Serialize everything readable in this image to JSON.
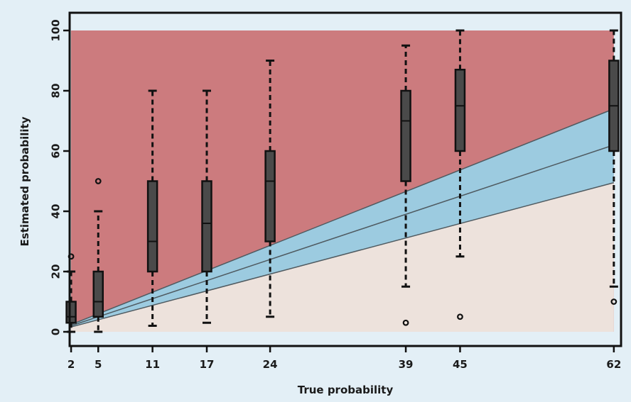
{
  "chart_data": {
    "type": "boxplot",
    "xlabel": "True probability",
    "ylabel": "Estimated probability",
    "x_ticks": [
      2,
      5,
      11,
      17,
      24,
      39,
      45,
      62
    ],
    "y_ticks": [
      0,
      20,
      40,
      60,
      80,
      100
    ],
    "xlim": [
      0,
      66
    ],
    "ylim": [
      0,
      100
    ],
    "regions": {
      "overestimate_color": "#cc7b7e",
      "underestimate_color": "#ede2dc",
      "band_color": "#9ccbe0",
      "band_edge_color": "#4f5a60",
      "diagonal": {
        "x0": 2,
        "y0": 2,
        "x1": 62,
        "y1": 62
      },
      "band_upper": {
        "x0": 2,
        "y0": 2.4,
        "x1": 62,
        "y1": 74
      },
      "band_lower": {
        "x0": 2,
        "y0": 1.6,
        "x1": 62,
        "y1": 49.5
      }
    },
    "box_color": "#4a4a4a",
    "boxes": [
      {
        "x": 2,
        "whisker_low": 0,
        "q1": 3,
        "median": 5,
        "q3": 10,
        "whisker_high": 20,
        "outliers": [
          25
        ]
      },
      {
        "x": 5,
        "whisker_low": 0,
        "q1": 5,
        "median": 10,
        "q3": 20,
        "whisker_high": 40,
        "outliers": [
          50
        ]
      },
      {
        "x": 11,
        "whisker_low": 2,
        "q1": 20,
        "median": 30,
        "q3": 50,
        "whisker_high": 80,
        "outliers": []
      },
      {
        "x": 17,
        "whisker_low": 3,
        "q1": 20,
        "median": 36,
        "q3": 50,
        "whisker_high": 80,
        "outliers": []
      },
      {
        "x": 24,
        "whisker_low": 5,
        "q1": 30,
        "median": 50,
        "q3": 60,
        "whisker_high": 90,
        "outliers": []
      },
      {
        "x": 39,
        "whisker_low": 15,
        "q1": 50,
        "median": 70,
        "q3": 80,
        "whisker_high": 95,
        "outliers": [
          3
        ]
      },
      {
        "x": 45,
        "whisker_low": 25,
        "q1": 60,
        "median": 75,
        "q3": 87,
        "whisker_high": 100,
        "outliers": [
          5
        ]
      },
      {
        "x": 62,
        "whisker_low": 15,
        "q1": 60,
        "median": 75,
        "q3": 90,
        "whisker_high": 100,
        "outliers": [
          10
        ]
      }
    ]
  }
}
